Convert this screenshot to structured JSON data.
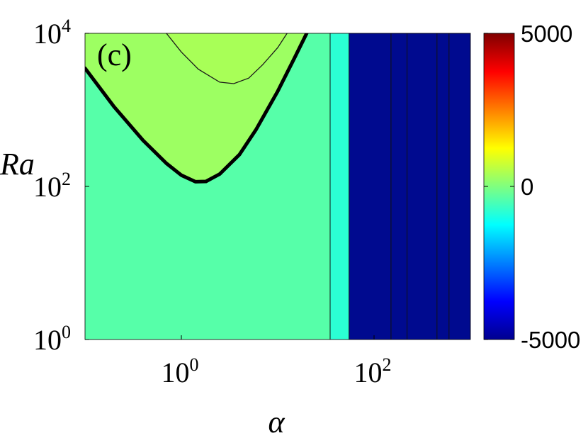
{
  "chart_data": {
    "type": "heatmap",
    "panel_label": "(c)",
    "xlabel": "α",
    "ylabel": "Ra",
    "xscale": "log",
    "yscale": "log",
    "xlim": [
      0.1,
      1000
    ],
    "ylim": [
      1,
      10000
    ],
    "x_ticks": [
      {
        "base": "10",
        "exp": "0",
        "value": 1
      },
      {
        "base": "10",
        "exp": "2",
        "value": 100
      }
    ],
    "y_ticks": [
      {
        "base": "10",
        "exp": "0",
        "value": 1
      },
      {
        "base": "10",
        "exp": "2",
        "value": 100
      },
      {
        "base": "10",
        "exp": "4",
        "value": 10000
      }
    ],
    "grid": false,
    "colormap": "jet",
    "colorbar": {
      "range": [
        -5000,
        5000
      ],
      "ticks": [
        {
          "label": "5000",
          "value": 5000
        },
        {
          "label": "0",
          "value": 0
        },
        {
          "label": "-5000",
          "value": -5000
        }
      ]
    },
    "regions": [
      {
        "id": "base-level",
        "value": 400,
        "color": "#56FFA9"
      },
      {
        "id": "upper-level",
        "value": 1400,
        "color": "#9DFF62"
      },
      {
        "id": "top-level",
        "value": 1800,
        "color": "#A8FF57"
      },
      {
        "id": "cyan-band",
        "x_range": [
          35,
          55
        ],
        "value": -1000,
        "color": "#2BFFD4"
      },
      {
        "id": "dark-band",
        "x_range": [
          55,
          1000
        ],
        "value": -5000,
        "color": "#000A8F"
      }
    ],
    "contours": [
      {
        "id": "neutral-curve",
        "style": "thick",
        "points": [
          [
            0.1,
            3500
          ],
          [
            0.2,
            1100
          ],
          [
            0.4,
            400
          ],
          [
            0.7,
            200
          ],
          [
            1.0,
            140
          ],
          [
            1.4,
            115
          ],
          [
            1.8,
            116
          ],
          [
            2.5,
            145
          ],
          [
            4.0,
            260
          ],
          [
            6.0,
            560
          ],
          [
            10.0,
            1750
          ],
          [
            15.0,
            4800
          ],
          [
            20.0,
            10000
          ]
        ]
      },
      {
        "id": "inner-contour",
        "style": "thin",
        "points": [
          [
            0.7,
            10000
          ],
          [
            1.0,
            5700
          ],
          [
            1.5,
            3400
          ],
          [
            2.5,
            2300
          ],
          [
            3.5,
            2200
          ],
          [
            5.0,
            2600
          ],
          [
            7.0,
            3900
          ],
          [
            10.0,
            6500
          ],
          [
            12.5,
            10000
          ]
        ]
      },
      {
        "id": "band-boundary-1",
        "style": "thin-vertical",
        "x": 35
      },
      {
        "id": "band-boundary-2",
        "style": "thin-vertical",
        "x": 55
      },
      {
        "id": "band-boundary-3",
        "style": "thin-vertical",
        "x": 150
      },
      {
        "id": "band-boundary-4",
        "style": "thin-vertical",
        "x": 220
      },
      {
        "id": "band-boundary-5",
        "style": "thin-vertical",
        "x": 450
      },
      {
        "id": "band-boundary-6",
        "style": "thin-vertical",
        "x": 600
      }
    ]
  }
}
